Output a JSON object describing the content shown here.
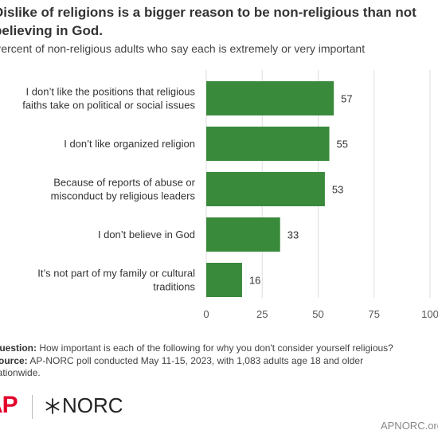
{
  "header": {
    "title_line1": "Dislike of religions is a bigger reason to be non-religious than not",
    "title_line2": "believing in God.",
    "subtitle": "Percent of non-religious adults who say each is extremely or very important"
  },
  "chart_data": {
    "type": "bar",
    "orientation": "horizontal",
    "categories": [
      [
        "I don’t like the positions that religious",
        "faiths take on political or social issues"
      ],
      [
        "I don’t like organized religion"
      ],
      [
        "Because of reports of abuse or",
        "misconduct by religious leaders"
      ],
      [
        "I don’t believe in God"
      ],
      [
        "It’s not part of my family or cultural",
        "traditions"
      ]
    ],
    "values": [
      57,
      55,
      53,
      33,
      16
    ],
    "value_labels": [
      "57",
      "55",
      "53",
      "33",
      "16"
    ],
    "xlim": [
      0,
      100
    ],
    "x_ticks": [
      0,
      25,
      50,
      75,
      100
    ],
    "x_tick_labels": [
      "0",
      "25",
      "50",
      "75",
      "100"
    ],
    "grid": true,
    "bar_color": "#3a8a3c"
  },
  "notes": {
    "question_label": "Question:",
    "question_text": " How important is each of the following for why you don't consider yourself religious?",
    "source_label": "Source:",
    "source_text": " AP-NORC poll conducted May 11-15, 2023, with 1,083 adults age 18 and older",
    "source_text2": "nationwide."
  },
  "footer": {
    "logo_ap": "AP",
    "logo_norc": "NORC",
    "site": "APNORC.org"
  }
}
